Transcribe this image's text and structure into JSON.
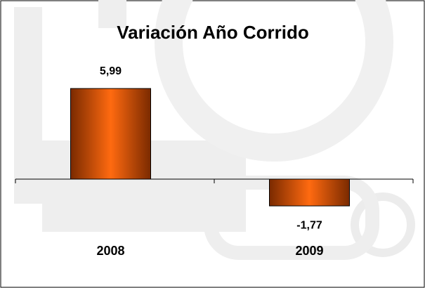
{
  "chart_data": {
    "type": "bar",
    "title": "Variación Año Corrido",
    "categories": [
      "2008",
      "2009"
    ],
    "values": [
      5.99,
      -1.77
    ],
    "value_labels": [
      "5,99",
      "-1,77"
    ]
  }
}
